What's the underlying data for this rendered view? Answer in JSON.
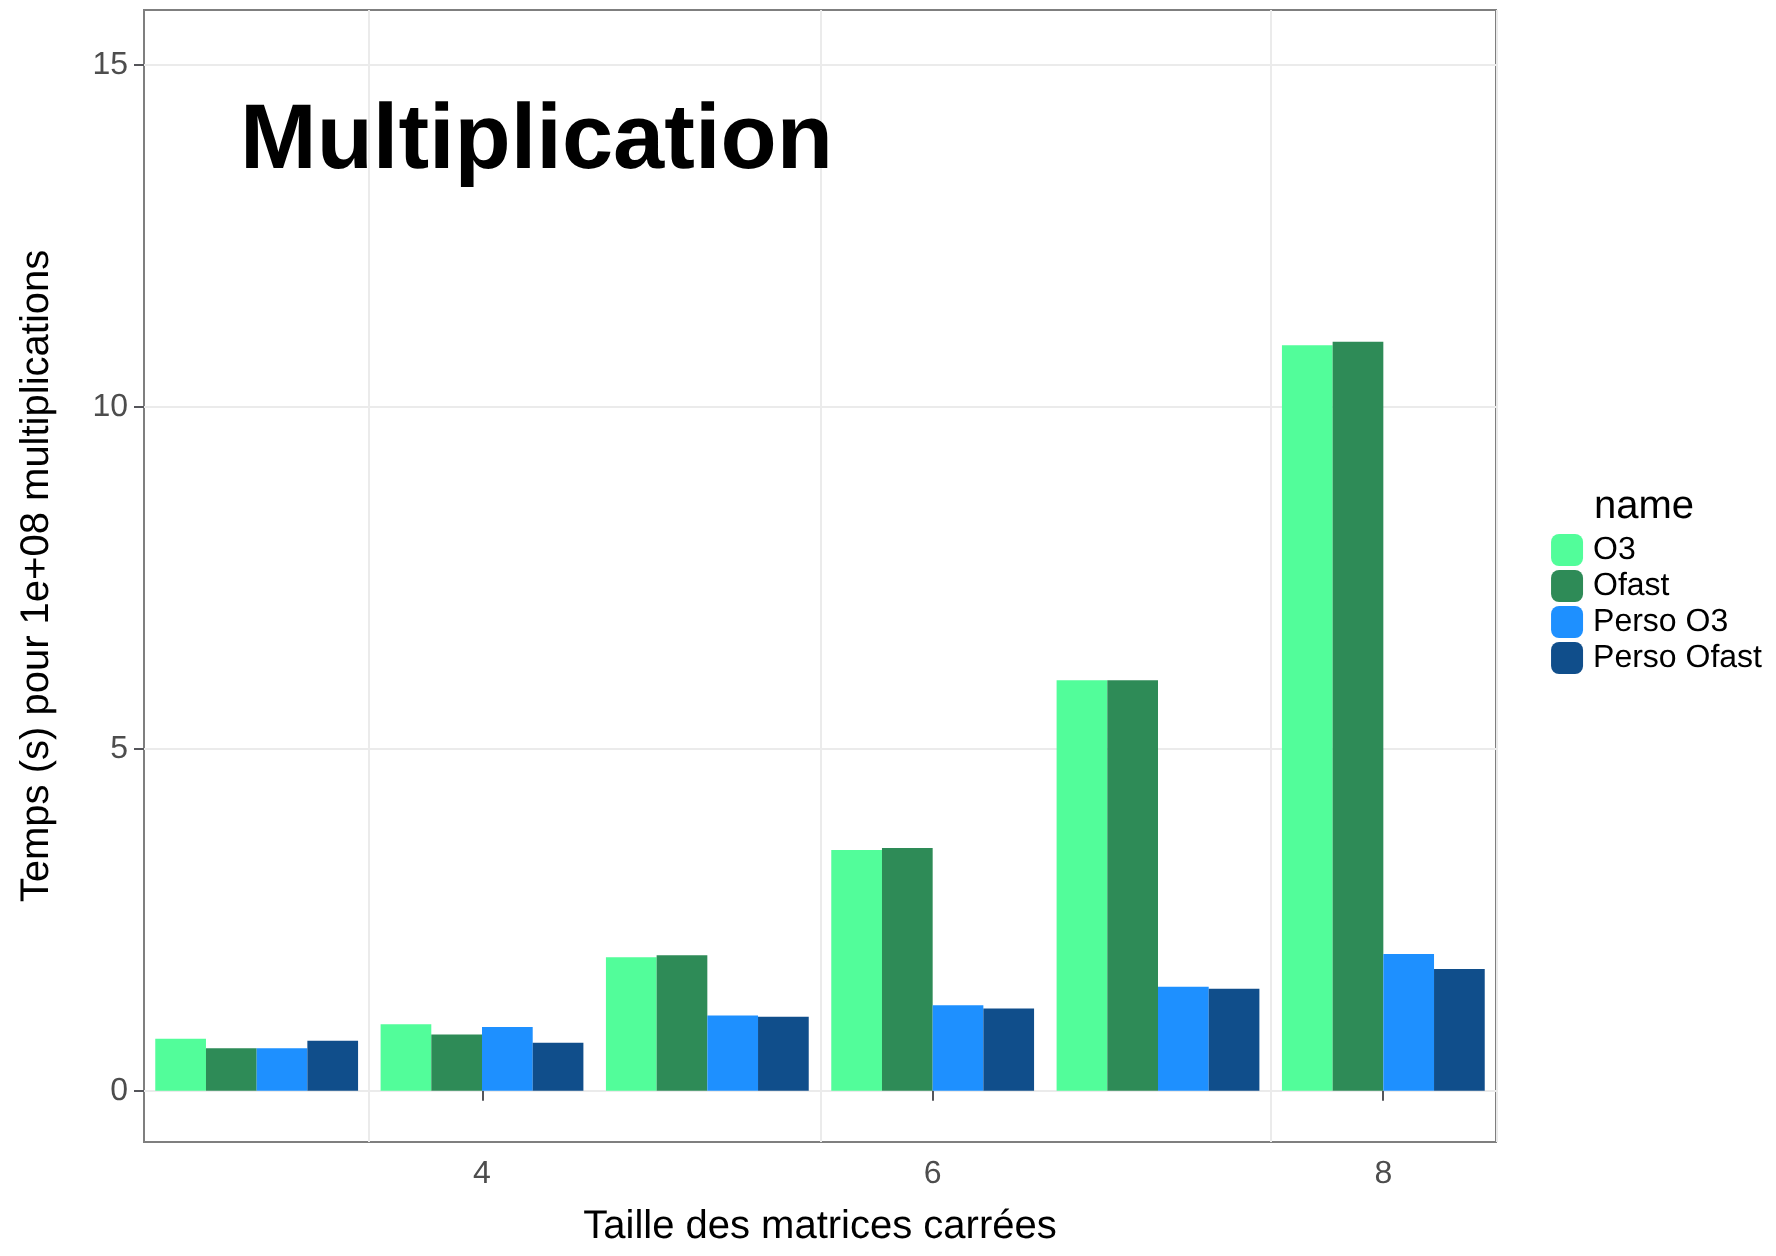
{
  "chart_data": {
    "type": "bar",
    "title": "Multiplication",
    "xlabel": "Taille des matrices carrées",
    "ylabel": "Temps (s) pour 1e+08 multiplications",
    "legend_title": "name",
    "categories": [
      null,
      "4",
      null,
      "6",
      null,
      "8"
    ],
    "series": [
      {
        "name": "O3",
        "color": "#52fd9a",
        "values": [
          0.76,
          0.97,
          1.95,
          3.52,
          6.0,
          10.9
        ]
      },
      {
        "name": "Ofast",
        "color": "#2e8b57",
        "values": [
          0.62,
          0.82,
          1.98,
          3.55,
          6.0,
          10.95
        ]
      },
      {
        "name": "Perso O3",
        "color": "#1e90ff",
        "values": [
          0.62,
          0.93,
          1.1,
          1.25,
          1.52,
          2.0
        ]
      },
      {
        "name": "Perso Ofast",
        "color": "#104e8b",
        "values": [
          0.73,
          0.7,
          1.08,
          1.2,
          1.49,
          1.78
        ]
      }
    ],
    "ylim": [
      -0.75,
      15.8
    ],
    "yticks": [
      0,
      5,
      10,
      15
    ],
    "grid": true,
    "legend": "right"
  }
}
